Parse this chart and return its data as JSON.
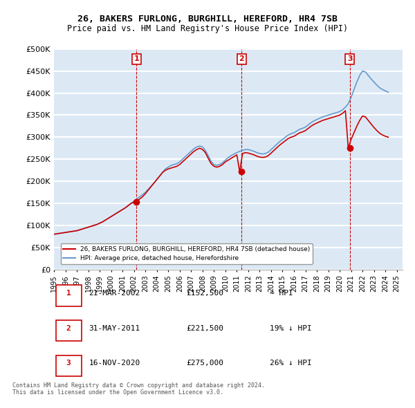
{
  "title": "26, BAKERS FURLONG, BURGHILL, HEREFORD, HR4 7SB",
  "subtitle": "Price paid vs. HM Land Registry's House Price Index (HPI)",
  "bg_color": "#dce9f5",
  "plot_bg_color": "#dce9f5",
  "grid_color": "white",
  "ylim": [
    0,
    500000
  ],
  "yticks": [
    0,
    50000,
    100000,
    150000,
    200000,
    250000,
    300000,
    350000,
    400000,
    450000,
    500000
  ],
  "ytick_labels": [
    "£0",
    "£50K",
    "£100K",
    "£150K",
    "£200K",
    "£250K",
    "£300K",
    "£350K",
    "£400K",
    "£450K",
    "£500K"
  ],
  "sale_dates": [
    "2002-03-21",
    "2011-05-31",
    "2020-11-16"
  ],
  "sale_prices": [
    152500,
    221500,
    275000
  ],
  "sale_labels": [
    "1",
    "2",
    "3"
  ],
  "legend_line1": "26, BAKERS FURLONG, BURGHILL, HEREFORD, HR4 7SB (detached house)",
  "legend_line2": "HPI: Average price, detached house, Herefordshire",
  "table_data": [
    [
      "1",
      "21-MAR-2002",
      "£152,500",
      "≈ HPI"
    ],
    [
      "2",
      "31-MAY-2011",
      "£221,500",
      "19% ↓ HPI"
    ],
    [
      "3",
      "16-NOV-2020",
      "£275,000",
      "26% ↓ HPI"
    ]
  ],
  "footer": "Contains HM Land Registry data © Crown copyright and database right 2024.\nThis data is licensed under the Open Government Licence v3.0.",
  "line_color_red": "#cc0000",
  "line_color_blue": "#6699cc",
  "vline_color": "#cc0000",
  "hpi_x": [
    1995.0,
    1995.25,
    1995.5,
    1995.75,
    1996.0,
    1996.25,
    1996.5,
    1996.75,
    1997.0,
    1997.25,
    1997.5,
    1997.75,
    1998.0,
    1998.25,
    1998.5,
    1998.75,
    1999.0,
    1999.25,
    1999.5,
    1999.75,
    2000.0,
    2000.25,
    2000.5,
    2000.75,
    2001.0,
    2001.25,
    2001.5,
    2001.75,
    2002.0,
    2002.25,
    2002.5,
    2002.75,
    2003.0,
    2003.25,
    2003.5,
    2003.75,
    2004.0,
    2004.25,
    2004.5,
    2004.75,
    2005.0,
    2005.25,
    2005.5,
    2005.75,
    2006.0,
    2006.25,
    2006.5,
    2006.75,
    2007.0,
    2007.25,
    2007.5,
    2007.75,
    2008.0,
    2008.25,
    2008.5,
    2008.75,
    2009.0,
    2009.25,
    2009.5,
    2009.75,
    2010.0,
    2010.25,
    2010.5,
    2010.75,
    2011.0,
    2011.25,
    2011.5,
    2011.75,
    2012.0,
    2012.25,
    2012.5,
    2012.75,
    2013.0,
    2013.25,
    2013.5,
    2013.75,
    2014.0,
    2014.25,
    2014.5,
    2014.75,
    2015.0,
    2015.25,
    2015.5,
    2015.75,
    2016.0,
    2016.25,
    2016.5,
    2016.75,
    2017.0,
    2017.25,
    2017.5,
    2017.75,
    2018.0,
    2018.25,
    2018.5,
    2018.75,
    2019.0,
    2019.25,
    2019.5,
    2019.75,
    2020.0,
    2020.25,
    2020.5,
    2020.75,
    2021.0,
    2021.25,
    2021.5,
    2021.75,
    2022.0,
    2022.25,
    2022.5,
    2022.75,
    2023.0,
    2023.25,
    2023.5,
    2023.75,
    2024.0,
    2024.25
  ],
  "hpi_y": [
    80000,
    81000,
    82000,
    83000,
    84000,
    85000,
    86000,
    87000,
    88000,
    90000,
    92000,
    94000,
    96000,
    98000,
    100000,
    102000,
    105000,
    108000,
    112000,
    116000,
    120000,
    124000,
    128000,
    132000,
    136000,
    140000,
    145000,
    150000,
    155000,
    160000,
    165000,
    170000,
    175000,
    182000,
    189000,
    196000,
    204000,
    212000,
    220000,
    228000,
    232000,
    236000,
    238000,
    240000,
    244000,
    250000,
    256000,
    262000,
    268000,
    274000,
    278000,
    280000,
    278000,
    270000,
    258000,
    245000,
    238000,
    236000,
    238000,
    242000,
    248000,
    254000,
    258000,
    262000,
    265000,
    268000,
    270000,
    272000,
    272000,
    270000,
    268000,
    265000,
    263000,
    262000,
    263000,
    266000,
    272000,
    278000,
    284000,
    290000,
    295000,
    300000,
    305000,
    308000,
    310000,
    314000,
    318000,
    320000,
    323000,
    328000,
    333000,
    337000,
    340000,
    343000,
    346000,
    348000,
    350000,
    352000,
    354000,
    356000,
    358000,
    362000,
    368000,
    376000,
    390000,
    408000,
    425000,
    440000,
    450000,
    448000,
    440000,
    432000,
    425000,
    418000,
    412000,
    408000,
    405000,
    402000
  ],
  "price_x": [
    1995.0,
    1995.25,
    1995.5,
    1995.75,
    1996.0,
    1996.25,
    1996.5,
    1996.75,
    1997.0,
    1997.25,
    1997.5,
    1997.75,
    1998.0,
    1998.25,
    1998.5,
    1998.75,
    1999.0,
    1999.25,
    1999.5,
    1999.75,
    2000.0,
    2000.25,
    2000.5,
    2000.75,
    2001.0,
    2001.25,
    2001.5,
    2001.75,
    2002.0,
    2002.25,
    2002.5,
    2002.75,
    2003.0,
    2003.25,
    2003.5,
    2003.75,
    2004.0,
    2004.25,
    2004.5,
    2004.75,
    2005.0,
    2005.25,
    2005.5,
    2005.75,
    2006.0,
    2006.25,
    2006.5,
    2006.75,
    2007.0,
    2007.25,
    2007.5,
    2007.75,
    2008.0,
    2008.25,
    2008.5,
    2008.75,
    2009.0,
    2009.25,
    2009.5,
    2009.75,
    2010.0,
    2010.25,
    2010.5,
    2010.75,
    2011.0,
    2011.25,
    2011.5,
    2011.75,
    2012.0,
    2012.25,
    2012.5,
    2012.75,
    2013.0,
    2013.25,
    2013.5,
    2013.75,
    2014.0,
    2014.25,
    2014.5,
    2014.75,
    2015.0,
    2015.25,
    2015.5,
    2015.75,
    2016.0,
    2016.25,
    2016.5,
    2016.75,
    2017.0,
    2017.25,
    2017.5,
    2017.75,
    2018.0,
    2018.25,
    2018.5,
    2018.75,
    2019.0,
    2019.25,
    2019.5,
    2019.75,
    2020.0,
    2020.25,
    2020.5,
    2020.75,
    2021.0,
    2021.25,
    2021.5,
    2021.75,
    2022.0,
    2022.25,
    2022.5,
    2022.75,
    2023.0,
    2023.25,
    2023.5,
    2023.75,
    2024.0,
    2024.25
  ],
  "price_y": [
    80000,
    81000,
    82000,
    83000,
    84000,
    85000,
    86000,
    87000,
    88000,
    90000,
    92000,
    94000,
    96000,
    98000,
    100000,
    102000,
    105000,
    108000,
    112000,
    116000,
    120000,
    124000,
    128000,
    132000,
    136000,
    140000,
    145000,
    150000,
    152500,
    155000,
    160000,
    165000,
    172000,
    180000,
    188000,
    196000,
    204000,
    212000,
    220000,
    225000,
    228000,
    230000,
    232000,
    234000,
    238000,
    244000,
    250000,
    256000,
    262000,
    268000,
    272000,
    275000,
    272000,
    265000,
    252000,
    240000,
    234000,
    232000,
    234000,
    238000,
    244000,
    248000,
    252000,
    256000,
    260000,
    221500,
    263000,
    265000,
    264000,
    262000,
    260000,
    257000,
    255000,
    254000,
    255000,
    258000,
    264000,
    270000,
    276000,
    282000,
    287000,
    292000,
    297000,
    300000,
    302000,
    306000,
    310000,
    312000,
    315000,
    320000,
    325000,
    329000,
    332000,
    335000,
    338000,
    340000,
    342000,
    344000,
    346000,
    348000,
    350000,
    354000,
    360000,
    275000,
    295000,
    310000,
    325000,
    338000,
    348000,
    346000,
    338000,
    330000,
    322000,
    315000,
    309000,
    305000,
    302000,
    300000
  ]
}
